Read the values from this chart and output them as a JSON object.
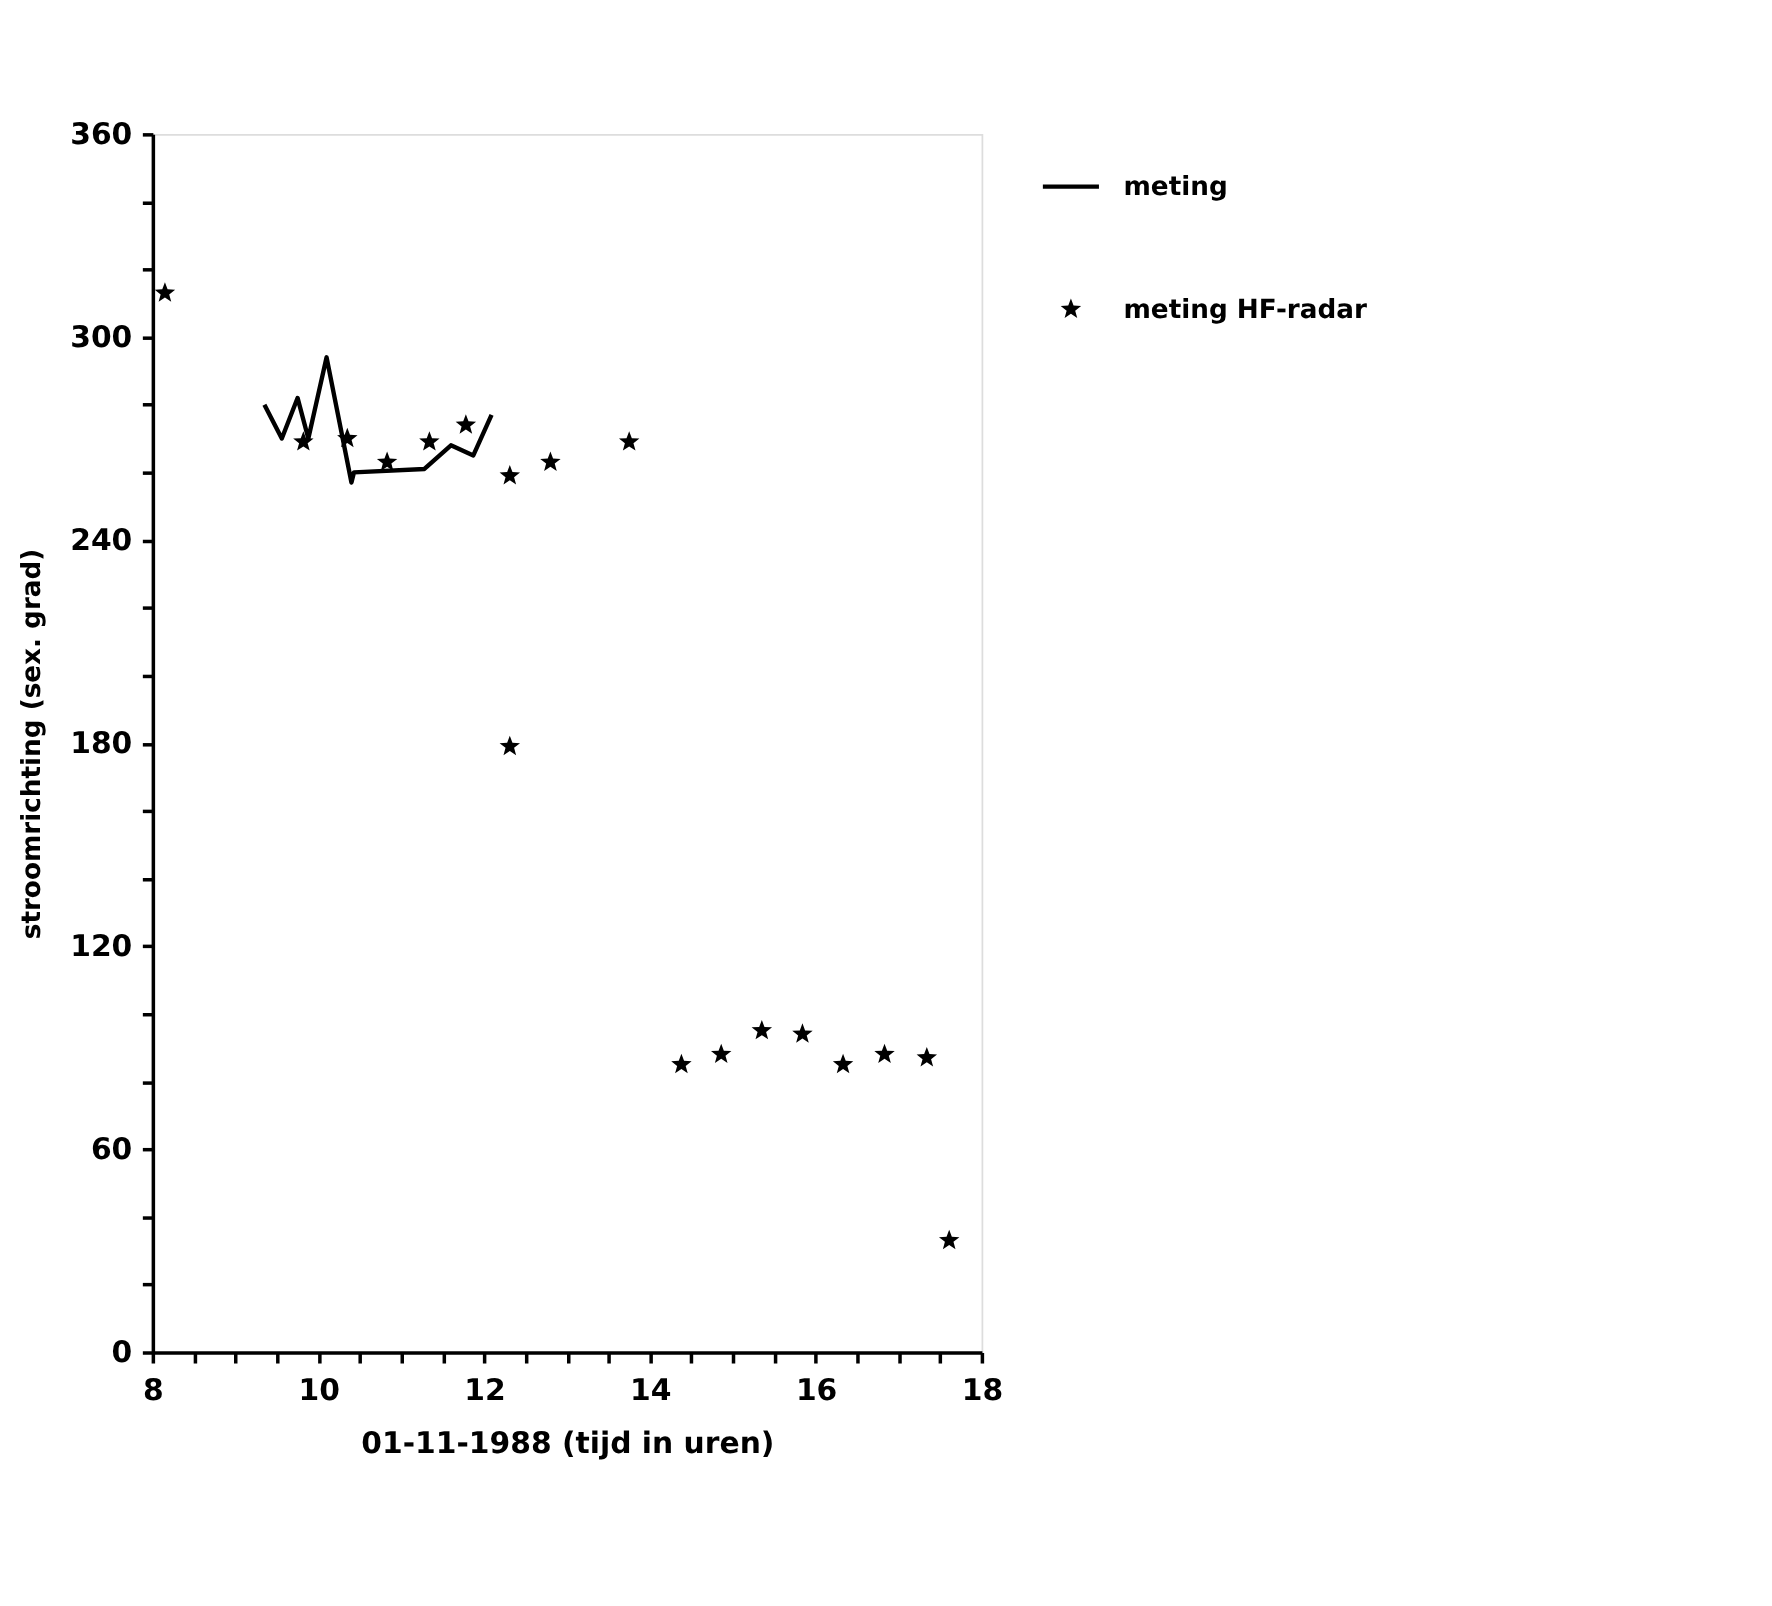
{
  "chart_data": {
    "type": "scatter",
    "xlabel": "01-11-1988   (tijd in uren)",
    "ylabel": "stroomrichting (sex. grad)",
    "xlim": [
      8,
      18
    ],
    "ylim": [
      0,
      360
    ],
    "xticks": [
      8,
      {
        "value": 8.5,
        "label": null
      },
      {
        "value": 9,
        "label": null
      },
      {
        "value": 9.5,
        "label": null
      },
      10,
      {
        "value": 10.5,
        "label": null
      },
      {
        "value": 11,
        "label": null
      },
      {
        "value": 11.5,
        "label": null
      },
      12,
      {
        "value": 12.5,
        "label": null
      },
      {
        "value": 13,
        "label": null
      },
      {
        "value": 13.5,
        "label": null
      },
      14,
      {
        "value": 14.5,
        "label": null
      },
      {
        "value": 15,
        "label": null
      },
      {
        "value": 15.5,
        "label": null
      },
      16,
      {
        "value": 16.5,
        "label": null
      },
      {
        "value": 17,
        "label": null
      },
      {
        "value": 17.5,
        "label": null
      },
      18
    ],
    "yticks": [
      0,
      {
        "value": 20,
        "label": null
      },
      {
        "value": 40,
        "label": null
      },
      60,
      {
        "value": 80,
        "label": null
      },
      {
        "value": 100,
        "label": null
      },
      120,
      {
        "value": 140,
        "label": null
      },
      {
        "value": 160,
        "label": null
      },
      180,
      {
        "value": 200,
        "label": null
      },
      {
        "value": 220,
        "label": null
      },
      240,
      {
        "value": 260,
        "label": null
      },
      {
        "value": 280,
        "label": null
      },
      300,
      {
        "value": 320,
        "label": null
      },
      {
        "value": 340,
        "label": null
      },
      360
    ],
    "grid": false,
    "legend": "right",
    "series": [
      {
        "name": "meting",
        "type": "line",
        "color": "#000000",
        "line_style": "solid",
        "marker": "none",
        "x": [
          9.35,
          9.56,
          9.75,
          9.88,
          10.1,
          10.4,
          10.43,
          11.28,
          11.6,
          11.87,
          12.09
        ],
        "values": [
          280,
          270,
          282,
          270,
          294,
          257,
          260,
          261,
          268,
          265,
          277
        ]
      },
      {
        "name": "meting HF-radar",
        "color": "#000000",
        "marker": "star",
        "x": [
          8.15,
          9.82,
          10.35,
          10.83,
          11.34,
          11.78,
          12.31,
          12.31,
          12.8,
          13.75,
          14.38,
          14.86,
          15.35,
          15.84,
          16.33,
          16.83,
          17.34,
          17.61
        ],
        "values": [
          313,
          269,
          270,
          263,
          269,
          274,
          259,
          179,
          263,
          269,
          85,
          88,
          95,
          94,
          85,
          88,
          87,
          33
        ]
      }
    ]
  }
}
